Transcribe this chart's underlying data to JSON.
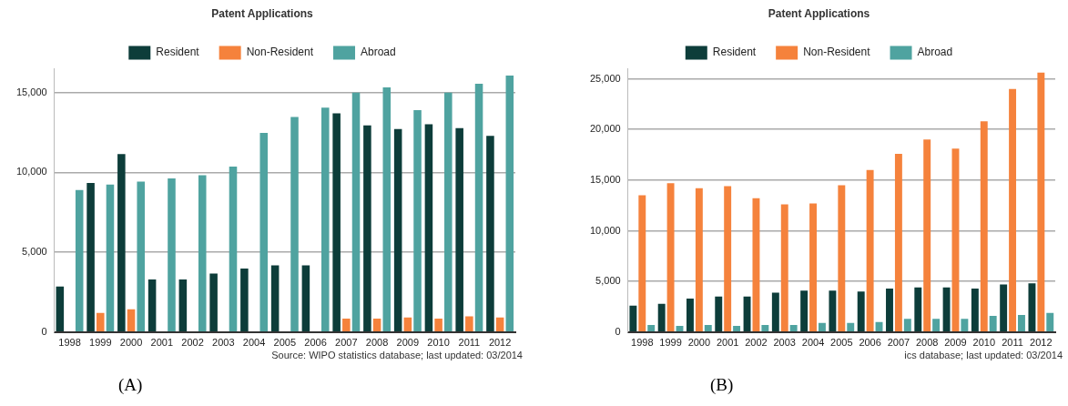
{
  "chart_data": [
    {
      "type": "bar",
      "title": "Patent Applications",
      "categories": [
        "1998",
        "1999",
        "2000",
        "2001",
        "2002",
        "2003",
        "2004",
        "2005",
        "2006",
        "2007",
        "2008",
        "2009",
        "2010",
        "2011",
        "2012"
      ],
      "series": [
        {
          "name": "Resident",
          "color": "#0d3d3a",
          "values": [
            2850,
            9340,
            11150,
            3290,
            3290,
            3670,
            3980,
            4180,
            4180,
            13700,
            12950,
            12720,
            13020,
            12780,
            12290
          ]
        },
        {
          "name": "Non-Resident",
          "color": "#f5823c",
          "values": [
            0,
            1200,
            1430,
            0,
            0,
            0,
            0,
            0,
            0,
            840,
            840,
            920,
            840,
            980,
            920
          ]
        },
        {
          "name": "Abroad",
          "color": "#4fa3a0",
          "values": [
            8900,
            9240,
            9430,
            9630,
            9830,
            10370,
            12480,
            13470,
            14060,
            15000,
            15330,
            13900,
            15000,
            15560,
            16070
          ]
        }
      ],
      "ylim": [
        0,
        16500
      ],
      "yticks": [
        {
          "value": 0,
          "label": "0"
        },
        {
          "value": 5000,
          "label": "5,000"
        },
        {
          "value": 10000,
          "label": "10,000"
        },
        {
          "value": 15000,
          "label": "15,000"
        }
      ],
      "grid": "y",
      "legend": "top",
      "annotations": [
        "Source: WIPO statistics database; last updated: 03/2014",
        "(A)"
      ]
    },
    {
      "type": "bar",
      "title": "Patent Applications",
      "categories": [
        "1998",
        "1999",
        "2000",
        "2001",
        "2002",
        "2003",
        "2004",
        "2005",
        "2006",
        "2007",
        "2008",
        "2009",
        "2010",
        "2011",
        "2012"
      ],
      "series": [
        {
          "name": "Resident",
          "color": "#0d3d3a",
          "values": [
            2600,
            2800,
            3300,
            3500,
            3500,
            3900,
            4100,
            4100,
            4000,
            4300,
            4400,
            4400,
            4300,
            4700,
            4800
          ]
        },
        {
          "name": "Non-Resident",
          "color": "#f5823c",
          "values": [
            13500,
            14700,
            14200,
            14400,
            13200,
            12600,
            12700,
            14500,
            16000,
            17600,
            19000,
            18100,
            20800,
            24000,
            25600
          ]
        },
        {
          "name": "Abroad",
          "color": "#4fa3a0",
          "values": [
            700,
            600,
            700,
            600,
            700,
            700,
            900,
            900,
            1000,
            1300,
            1300,
            1300,
            1600,
            1700,
            1900
          ]
        }
      ],
      "ylim": [
        0,
        26000
      ],
      "yticks": [
        {
          "value": 0,
          "label": "0"
        },
        {
          "value": 5000,
          "label": "5,000"
        },
        {
          "value": 10000,
          "label": "10,000"
        },
        {
          "value": 15000,
          "label": "15,000"
        },
        {
          "value": 20000,
          "label": "20,000"
        },
        {
          "value": 25000,
          "label": "25,000"
        }
      ],
      "grid": "y",
      "legend": "top",
      "annotations": [
        "ics database; last updated: 03/2014",
        "(B)"
      ]
    }
  ]
}
